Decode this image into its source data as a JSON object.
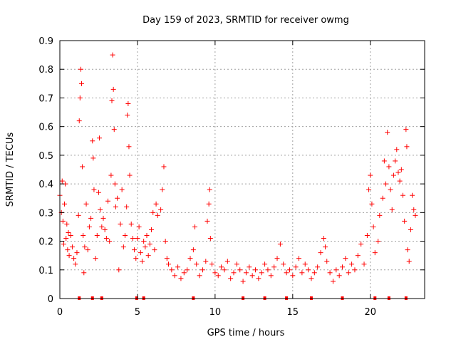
{
  "chart_data": {
    "type": "scatter",
    "title": "Day 159 of 2023, SRMTID for receiver owmg",
    "xlabel": "GPS time / hours",
    "ylabel": "SRMTID / TECUs",
    "xlim": [
      0,
      23.5
    ],
    "ylim": [
      0,
      0.9
    ],
    "x_ticks": [
      0,
      5,
      10,
      15,
      20
    ],
    "x_tick_labels": [
      "0",
      "5",
      "10",
      "15",
      "20"
    ],
    "y_ticks": [
      0,
      0.1,
      0.2,
      0.3,
      0.4,
      0.5,
      0.6,
      0.7,
      0.8,
      0.9
    ],
    "y_tick_labels": [
      "0",
      "0.1",
      "0.2",
      "0.3",
      "0.4",
      "0.5",
      "0.6",
      "0.7",
      "0.8",
      "0.9"
    ],
    "grid": true,
    "marker": "+",
    "color": "#ff0000",
    "series": [
      {
        "name": "SRMTID",
        "points": [
          [
            0.0,
            0.36
          ],
          [
            0.1,
            0.3
          ],
          [
            0.15,
            0.41
          ],
          [
            0.2,
            0.27
          ],
          [
            0.25,
            0.19
          ],
          [
            0.3,
            0.33
          ],
          [
            0.35,
            0.4
          ],
          [
            0.4,
            0.21
          ],
          [
            0.45,
            0.26
          ],
          [
            0.5,
            0.17
          ],
          [
            0.55,
            0.23
          ],
          [
            0.6,
            0.15
          ],
          [
            0.7,
            0.22
          ],
          [
            0.8,
            0.18
          ],
          [
            0.9,
            0.14
          ],
          [
            1.0,
            0.12
          ],
          [
            1.1,
            0.16
          ],
          [
            1.2,
            0.29
          ],
          [
            1.25,
            0.62
          ],
          [
            1.3,
            0.7
          ],
          [
            1.35,
            0.8
          ],
          [
            1.4,
            0.75
          ],
          [
            1.45,
            0.46
          ],
          [
            1.5,
            0.22
          ],
          [
            1.55,
            0.09
          ],
          [
            1.6,
            0.18
          ],
          [
            1.7,
            0.33
          ],
          [
            1.8,
            0.17
          ],
          [
            1.9,
            0.25
          ],
          [
            2.0,
            0.28
          ],
          [
            2.1,
            0.55
          ],
          [
            2.15,
            0.49
          ],
          [
            2.2,
            0.38
          ],
          [
            2.3,
            0.14
          ],
          [
            2.4,
            0.22
          ],
          [
            2.5,
            0.37
          ],
          [
            2.55,
            0.56
          ],
          [
            2.6,
            0.31
          ],
          [
            2.7,
            0.25
          ],
          [
            2.8,
            0.28
          ],
          [
            2.9,
            0.24
          ],
          [
            3.0,
            0.21
          ],
          [
            3.1,
            0.34
          ],
          [
            3.2,
            0.2
          ],
          [
            3.3,
            0.43
          ],
          [
            3.35,
            0.69
          ],
          [
            3.4,
            0.85
          ],
          [
            3.45,
            0.73
          ],
          [
            3.5,
            0.59
          ],
          [
            3.55,
            0.4
          ],
          [
            3.6,
            0.32
          ],
          [
            3.7,
            0.35
          ],
          [
            3.8,
            0.1
          ],
          [
            3.9,
            0.26
          ],
          [
            4.0,
            0.38
          ],
          [
            4.1,
            0.18
          ],
          [
            4.2,
            0.22
          ],
          [
            4.3,
            0.32
          ],
          [
            4.35,
            0.64
          ],
          [
            4.4,
            0.68
          ],
          [
            4.45,
            0.53
          ],
          [
            4.5,
            0.43
          ],
          [
            4.6,
            0.26
          ],
          [
            4.7,
            0.21
          ],
          [
            4.8,
            0.17
          ],
          [
            4.9,
            0.14
          ],
          [
            5.0,
            0.21
          ],
          [
            5.1,
            0.25
          ],
          [
            5.2,
            0.16
          ],
          [
            5.3,
            0.13
          ],
          [
            5.4,
            0.2
          ],
          [
            5.5,
            0.18
          ],
          [
            5.6,
            0.22
          ],
          [
            5.7,
            0.15
          ],
          [
            5.8,
            0.19
          ],
          [
            5.9,
            0.24
          ],
          [
            6.0,
            0.3
          ],
          [
            6.1,
            0.17
          ],
          [
            6.2,
            0.33
          ],
          [
            6.3,
            0.29
          ],
          [
            6.5,
            0.31
          ],
          [
            6.6,
            0.38
          ],
          [
            6.7,
            0.46
          ],
          [
            6.8,
            0.2
          ],
          [
            6.9,
            0.14
          ],
          [
            7.0,
            0.12
          ],
          [
            7.2,
            0.1
          ],
          [
            7.4,
            0.08
          ],
          [
            7.6,
            0.11
          ],
          [
            7.8,
            0.07
          ],
          [
            8.0,
            0.09
          ],
          [
            8.2,
            0.1
          ],
          [
            8.4,
            0.14
          ],
          [
            8.6,
            0.17
          ],
          [
            8.7,
            0.25
          ],
          [
            8.8,
            0.12
          ],
          [
            9.0,
            0.08
          ],
          [
            9.2,
            0.1
          ],
          [
            9.4,
            0.13
          ],
          [
            9.5,
            0.27
          ],
          [
            9.6,
            0.33
          ],
          [
            9.65,
            0.38
          ],
          [
            9.7,
            0.21
          ],
          [
            9.8,
            0.12
          ],
          [
            10.0,
            0.09
          ],
          [
            10.2,
            0.08
          ],
          [
            10.4,
            0.11
          ],
          [
            10.6,
            0.1
          ],
          [
            10.8,
            0.13
          ],
          [
            11.0,
            0.07
          ],
          [
            11.2,
            0.09
          ],
          [
            11.4,
            0.12
          ],
          [
            11.6,
            0.1
          ],
          [
            11.8,
            0.06
          ],
          [
            12.0,
            0.09
          ],
          [
            12.2,
            0.11
          ],
          [
            12.4,
            0.08
          ],
          [
            12.6,
            0.1
          ],
          [
            12.8,
            0.07
          ],
          [
            13.0,
            0.09
          ],
          [
            13.2,
            0.12
          ],
          [
            13.4,
            0.1
          ],
          [
            13.6,
            0.08
          ],
          [
            13.8,
            0.11
          ],
          [
            14.0,
            0.14
          ],
          [
            14.2,
            0.19
          ],
          [
            14.4,
            0.12
          ],
          [
            14.6,
            0.09
          ],
          [
            14.8,
            0.1
          ],
          [
            15.0,
            0.08
          ],
          [
            15.2,
            0.11
          ],
          [
            15.4,
            0.14
          ],
          [
            15.6,
            0.09
          ],
          [
            15.8,
            0.12
          ],
          [
            16.0,
            0.1
          ],
          [
            16.2,
            0.07
          ],
          [
            16.4,
            0.09
          ],
          [
            16.6,
            0.11
          ],
          [
            16.8,
            0.16
          ],
          [
            17.0,
            0.21
          ],
          [
            17.1,
            0.18
          ],
          [
            17.2,
            0.13
          ],
          [
            17.4,
            0.09
          ],
          [
            17.6,
            0.06
          ],
          [
            17.8,
            0.1
          ],
          [
            18.0,
            0.08
          ],
          [
            18.2,
            0.11
          ],
          [
            18.4,
            0.14
          ],
          [
            18.6,
            0.09
          ],
          [
            18.8,
            0.12
          ],
          [
            19.0,
            0.1
          ],
          [
            19.2,
            0.15
          ],
          [
            19.4,
            0.19
          ],
          [
            19.6,
            0.12
          ],
          [
            19.8,
            0.22
          ],
          [
            19.9,
            0.38
          ],
          [
            20.0,
            0.43
          ],
          [
            20.1,
            0.33
          ],
          [
            20.2,
            0.25
          ],
          [
            20.3,
            0.16
          ],
          [
            20.5,
            0.2
          ],
          [
            20.6,
            0.29
          ],
          [
            20.8,
            0.35
          ],
          [
            20.9,
            0.48
          ],
          [
            21.0,
            0.4
          ],
          [
            21.1,
            0.58
          ],
          [
            21.2,
            0.46
          ],
          [
            21.3,
            0.38
          ],
          [
            21.4,
            0.31
          ],
          [
            21.5,
            0.43
          ],
          [
            21.6,
            0.48
          ],
          [
            21.7,
            0.52
          ],
          [
            21.8,
            0.44
          ],
          [
            21.9,
            0.41
          ],
          [
            22.0,
            0.45
          ],
          [
            22.1,
            0.36
          ],
          [
            22.2,
            0.27
          ],
          [
            22.3,
            0.59
          ],
          [
            22.35,
            0.53
          ],
          [
            22.4,
            0.17
          ],
          [
            22.5,
            0.13
          ],
          [
            22.6,
            0.24
          ],
          [
            22.7,
            0.36
          ],
          [
            22.8,
            0.31
          ],
          [
            22.9,
            0.29
          ]
        ]
      }
    ],
    "axis_markers_x": [
      1.25,
      2.1,
      2.7,
      4.95,
      5.4,
      8.6,
      11.8,
      13.2,
      14.6,
      16.2,
      18.2,
      20.3,
      21.2,
      22.3
    ]
  }
}
